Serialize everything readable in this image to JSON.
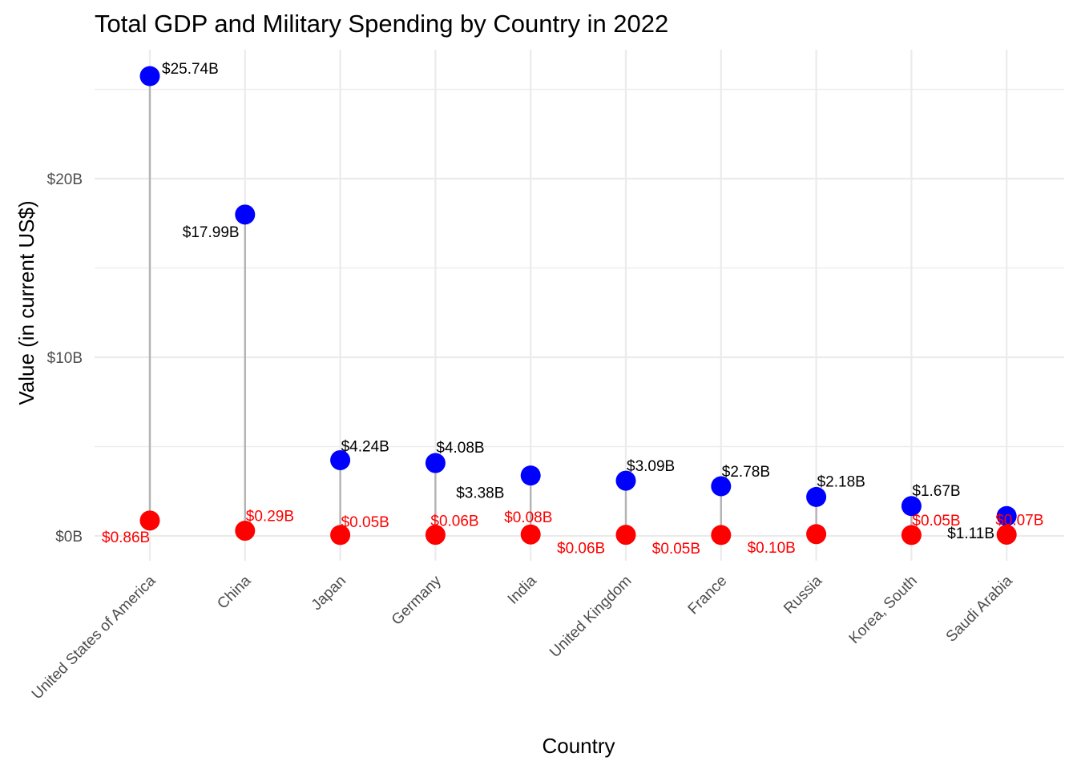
{
  "chart_data": {
    "type": "scatter",
    "subtype": "dumbbell",
    "title": "Total GDP and Military Spending by Country in 2022",
    "xlabel": "Country",
    "ylabel": "Value (in current US$)",
    "ylim": [
      -1.2,
      26.5
    ],
    "yticks": [
      0,
      10,
      20
    ],
    "ytick_labels": [
      "$0B",
      "$10B",
      "$20B"
    ],
    "grid": true,
    "legend": "none",
    "categories": [
      "United States of America",
      "China",
      "Japan",
      "Germany",
      "India",
      "United Kingdom",
      "France",
      "Russia",
      "Korea, South",
      "Saudi Arabia"
    ],
    "series": [
      {
        "color": "#0000ff",
        "values": [
          25.74,
          17.99,
          4.24,
          4.08,
          3.38,
          3.09,
          2.78,
          2.18,
          1.67,
          1.11
        ],
        "labels": [
          "$25.74B",
          "$17.99B",
          "$4.24B",
          "$4.08B",
          "$3.38B",
          "$3.09B",
          "$2.78B",
          "$2.18B",
          "$1.67B",
          "$1.11B"
        ]
      },
      {
        "color": "#ff0000",
        "values": [
          0.86,
          0.29,
          0.05,
          0.06,
          0.08,
          0.06,
          0.05,
          0.1,
          0.05,
          0.07
        ],
        "labels": [
          "$0.86B",
          "$0.29B",
          "$0.05B",
          "$0.06B",
          "$0.08B",
          "$0.06B",
          "$0.05B",
          "$0.10B",
          "$0.05B",
          "$0.07B"
        ]
      }
    ]
  }
}
